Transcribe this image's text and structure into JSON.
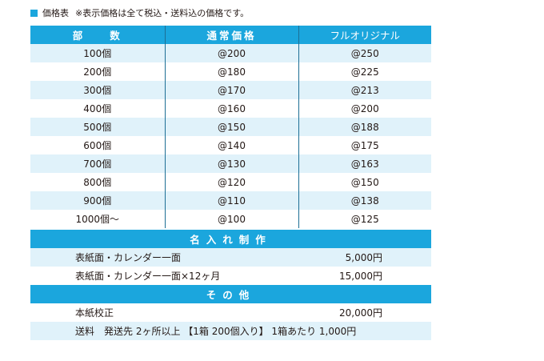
{
  "heading": {
    "title": "価格表",
    "note": "※表示価格は全て税込・送料込の価格です。"
  },
  "price_table": {
    "headers": [
      "部　　数",
      "通常価格",
      "フルオリジナル"
    ],
    "rows": [
      {
        "qty": "100個",
        "normal": "@200",
        "full": "@250"
      },
      {
        "qty": "200個",
        "normal": "@180",
        "full": "@225"
      },
      {
        "qty": "300個",
        "normal": "@170",
        "full": "@213"
      },
      {
        "qty": "400個",
        "normal": "@160",
        "full": "@200"
      },
      {
        "qty": "500個",
        "normal": "@150",
        "full": "@188"
      },
      {
        "qty": "600個",
        "normal": "@140",
        "full": "@175"
      },
      {
        "qty": "700個",
        "normal": "@130",
        "full": "@163"
      },
      {
        "qty": "800個",
        "normal": "@120",
        "full": "@150"
      },
      {
        "qty": "900個",
        "normal": "@110",
        "full": "@138"
      },
      {
        "qty": "1000個～",
        "normal": "@100",
        "full": "@125"
      }
    ]
  },
  "name_section": {
    "title": "名入れ制作",
    "items": [
      {
        "label": "表紙面・カレンダー一面",
        "price": "5,000円"
      },
      {
        "label": "表紙面・カレンダー一面×12ヶ月",
        "price": "15,000円"
      }
    ]
  },
  "other_section": {
    "title": "その他",
    "proof": {
      "label": "本紙校正",
      "price": "20,000円"
    },
    "shipping": "送料　発送先 2ヶ所以上 【1箱 200個入り】 1箱あたり 1,000円"
  },
  "colors": {
    "header_blue": "#1ba6dd",
    "stripe": "#e0f2fa",
    "divider": "#1d6f95"
  }
}
